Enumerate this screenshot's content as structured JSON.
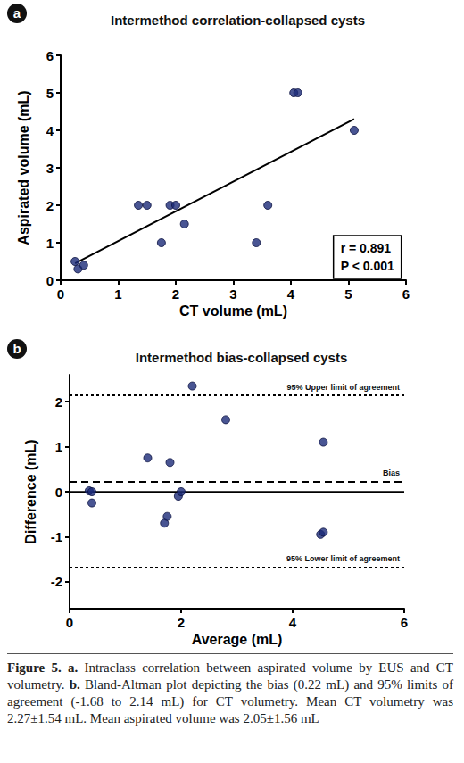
{
  "chart_data": [
    {
      "type": "scatter",
      "panel": "a",
      "title": "Intermethod correlation-collapsed cysts",
      "x_label": "CT volume (mL)",
      "y_label": "Aspirated volume (mL)",
      "x": [
        0.25,
        0.3,
        0.4,
        1.35,
        1.5,
        1.75,
        1.9,
        2.0,
        2.15,
        3.4,
        3.6,
        4.05,
        4.12,
        5.1
      ],
      "values": [
        0.5,
        0.3,
        0.4,
        2.0,
        2.0,
        1.0,
        2.0,
        2.0,
        1.5,
        1.0,
        2.0,
        5.0,
        5.0,
        4.0
      ],
      "color": "#1b2a78",
      "marker": "circle",
      "fit_line": {
        "x": [
          0.25,
          5.1
        ],
        "values": [
          0.45,
          4.3
        ],
        "color": "#000000",
        "line_style": "solid"
      },
      "annotations": [
        "r = 0.891",
        "P < 0.001"
      ],
      "xlim": [
        0,
        6
      ],
      "xticks": [
        0,
        1,
        2,
        3,
        4,
        5,
        6
      ],
      "ylim": [
        0,
        6
      ],
      "yticks": [
        0,
        1,
        2,
        3,
        4,
        5,
        6
      ],
      "grid": false
    },
    {
      "type": "scatter",
      "panel": "b",
      "title": "Intermethod bias-collapsed cysts",
      "x_label": "Average (mL)",
      "y_label": "Difference (mL)",
      "x": [
        0.35,
        0.4,
        0.4,
        1.4,
        1.7,
        1.75,
        1.8,
        1.95,
        2.0,
        2.2,
        2.8,
        4.5,
        4.55,
        4.55
      ],
      "values": [
        0.02,
        0.0,
        -0.25,
        0.75,
        -0.7,
        -0.55,
        0.65,
        -0.1,
        0.0,
        2.35,
        1.6,
        -0.95,
        -0.9,
        1.1
      ],
      "color": "#1b2a78",
      "marker": "circle",
      "reference_lines": [
        {
          "value": 2.14,
          "label": "95% Upper limit of agreement",
          "line_style": "dotted"
        },
        {
          "value": 0.22,
          "label": "Bias",
          "line_style": "dashed"
        },
        {
          "value": 0,
          "line_style": "solid"
        },
        {
          "value": -1.68,
          "label": "95% Lower limit of agreement",
          "line_style": "dotted"
        }
      ],
      "xlim": [
        0,
        6
      ],
      "xticks": [
        0,
        2,
        4,
        6
      ],
      "ylim": [
        -2.6,
        2.6
      ],
      "yticks": [
        -2,
        -1,
        0,
        1,
        2
      ],
      "grid": false
    }
  ],
  "caption": {
    "figure": "Figure 5.",
    "panels": [
      {
        "label": "a.",
        "text": "Intraclass correlation between aspirated volume by EUS and CT volumetry."
      },
      {
        "label": "b.",
        "text": "Bland-Altman plot depicting the bias (0.22 mL) and 95% limits of agreement (-1.68 to 2.14 mL) for CT volumetry. Mean CT volumetry was 2.27±1.54 mL. Mean aspirated volume was 2.05±1.56 mL"
      }
    ]
  }
}
